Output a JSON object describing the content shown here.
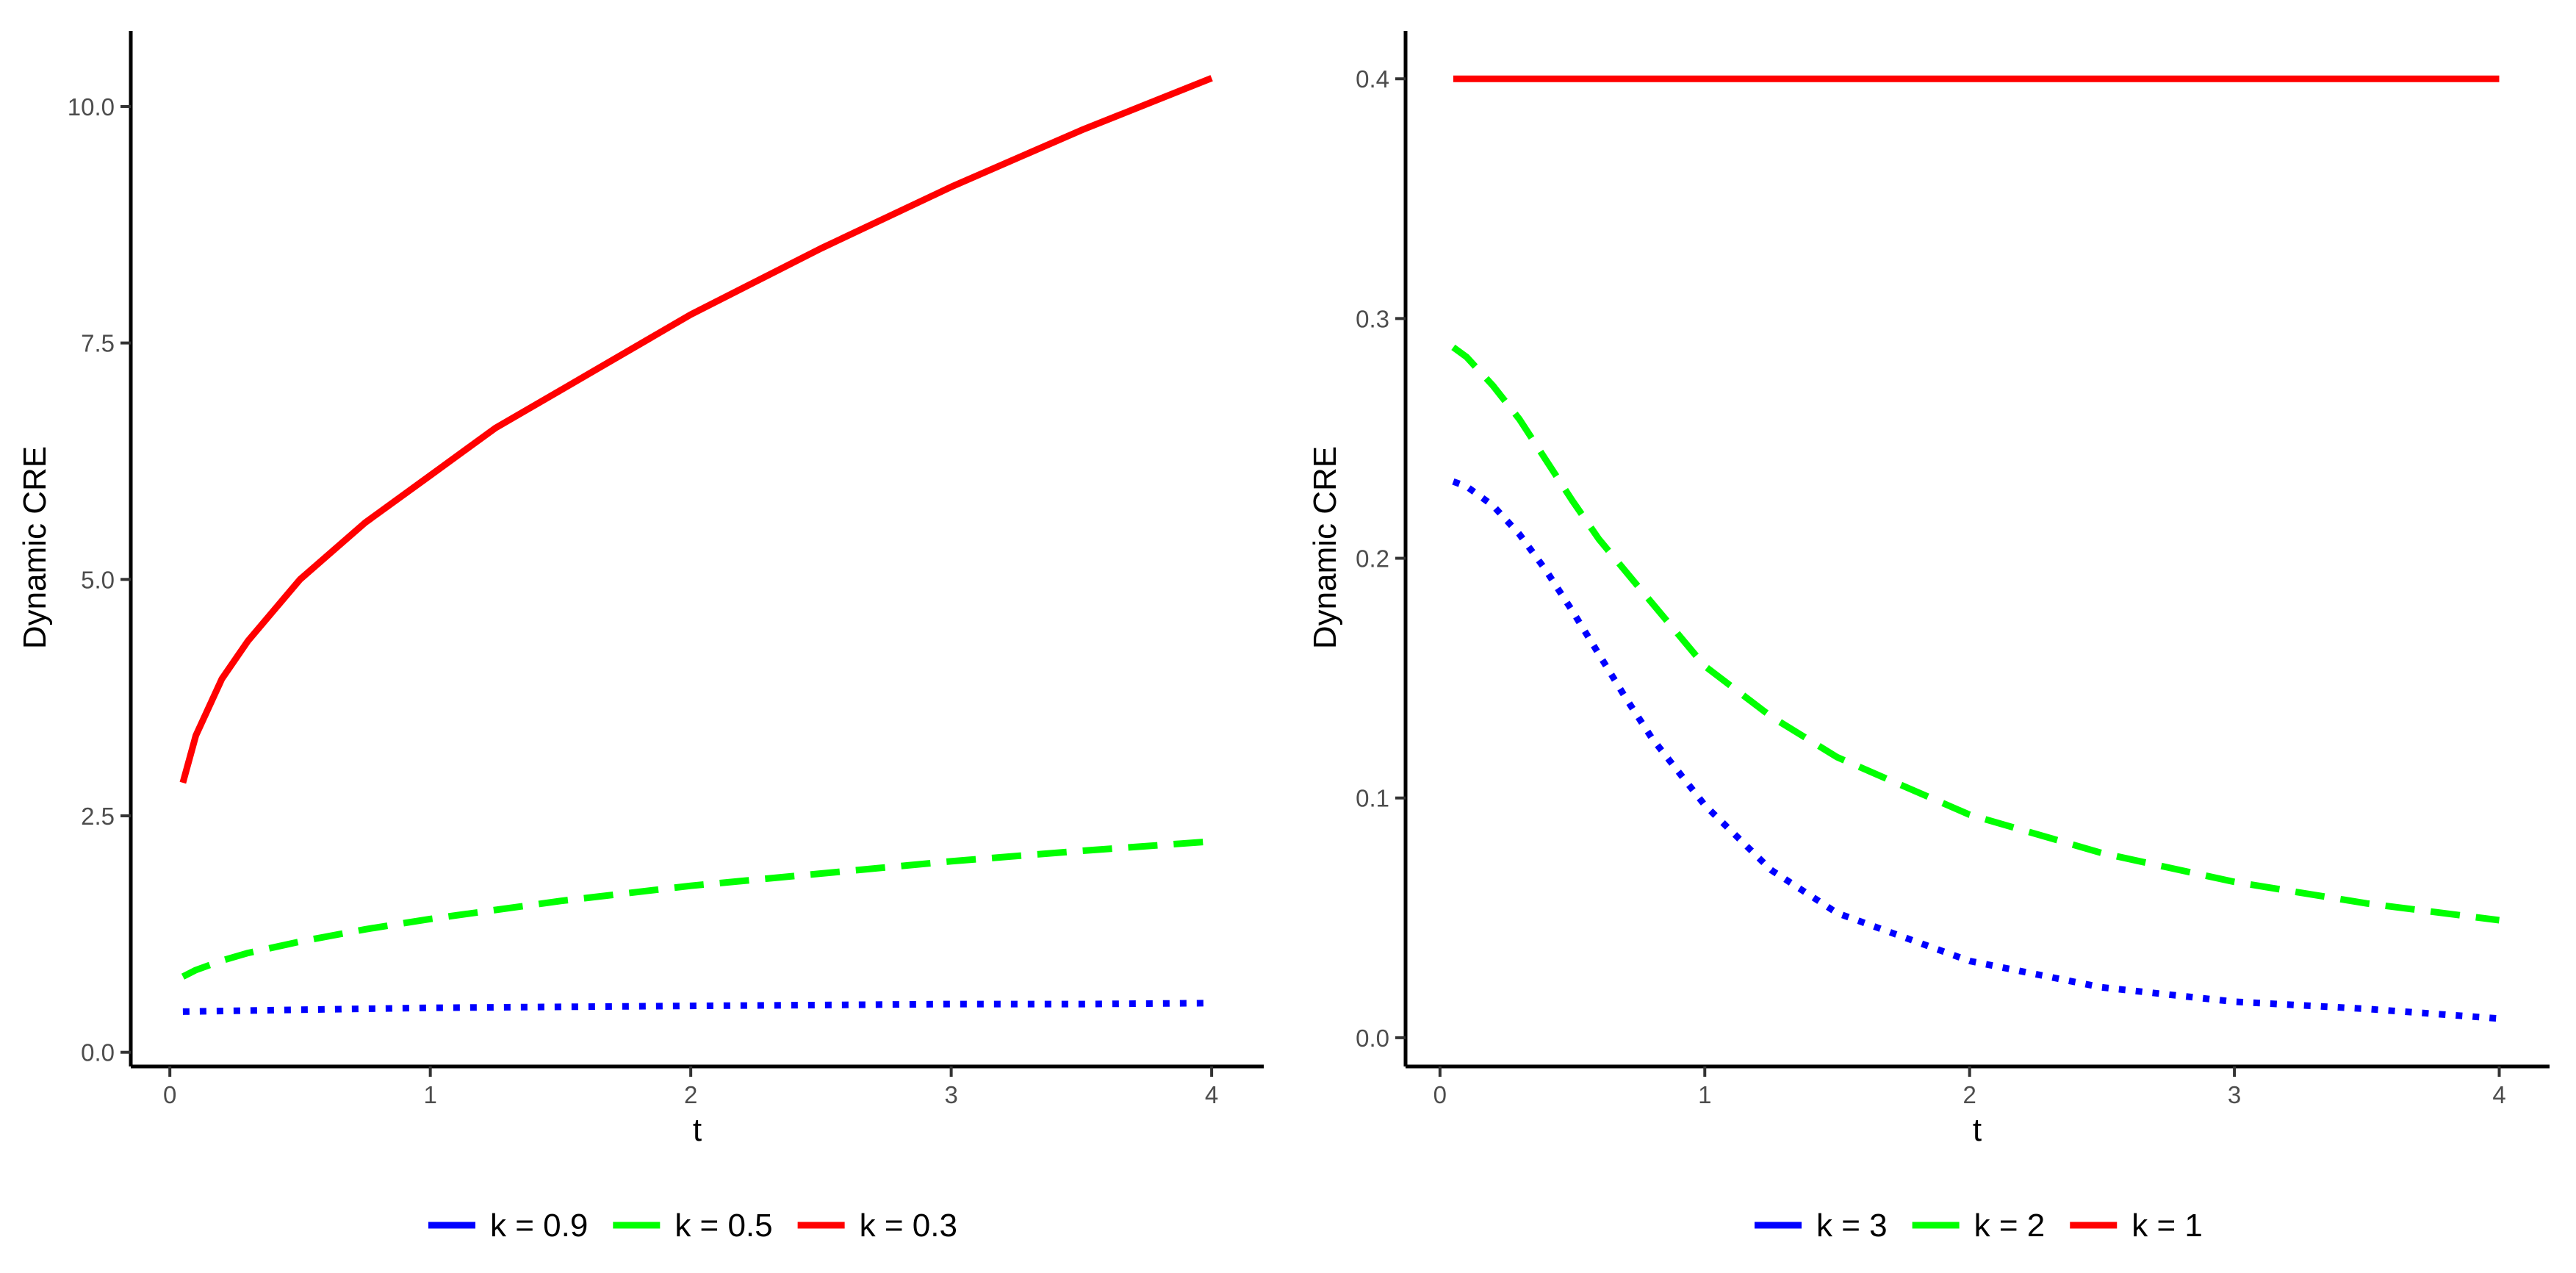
{
  "chart_data": [
    {
      "type": "line",
      "xlabel": "t",
      "ylabel": "Dynamic CRE",
      "xlim": [
        -0.15,
        4.2
      ],
      "ylim": [
        -0.15,
        10.8
      ],
      "x_ticks": [
        0,
        1,
        2,
        3,
        4
      ],
      "x_tick_labels": [
        "0",
        "1",
        "2",
        "3",
        "4"
      ],
      "y_ticks": [
        0,
        2.5,
        5,
        7.5,
        10
      ],
      "y_tick_labels": [
        "0.0",
        "2.5",
        "5.0",
        "7.5",
        "10.0"
      ],
      "grid": false,
      "legend_position": "bottom",
      "series": [
        {
          "name": "k = 0.9",
          "color": "#0000FF",
          "dash": "dotted",
          "x": [
            0.05,
            0.5,
            1,
            1.5,
            2,
            2.5,
            3,
            3.5,
            4
          ],
          "y": [
            0.43,
            0.45,
            0.47,
            0.48,
            0.49,
            0.5,
            0.51,
            0.51,
            0.52
          ]
        },
        {
          "name": "k = 0.5",
          "color": "#00FF00",
          "dash": "dashed",
          "x": [
            0.05,
            0.1,
            0.2,
            0.3,
            0.5,
            0.75,
            1,
            1.5,
            2,
            2.5,
            3,
            3.5,
            4
          ],
          "y": [
            0.8,
            0.87,
            0.97,
            1.05,
            1.17,
            1.3,
            1.41,
            1.6,
            1.76,
            1.89,
            2.02,
            2.13,
            2.23
          ]
        },
        {
          "name": "k = 0.3",
          "color": "#FF0000",
          "dash": "solid",
          "x": [
            0.05,
            0.1,
            0.2,
            0.3,
            0.5,
            0.75,
            1,
            1.25,
            1.5,
            2,
            2.5,
            3,
            3.5,
            4
          ],
          "y": [
            2.85,
            3.35,
            3.95,
            4.35,
            5.0,
            5.6,
            6.1,
            6.6,
            7.0,
            7.8,
            8.5,
            9.15,
            9.75,
            10.3
          ]
        }
      ]
    },
    {
      "type": "line",
      "xlabel": "t",
      "ylabel": "Dynamic CRE",
      "xlim": [
        -0.13,
        4.19
      ],
      "ylim": [
        -0.012,
        0.42
      ],
      "x_ticks": [
        0,
        1,
        2,
        3,
        4
      ],
      "x_tick_labels": [
        "0",
        "1",
        "2",
        "3",
        "4"
      ],
      "y_ticks": [
        0,
        0.1,
        0.2,
        0.3,
        0.4
      ],
      "y_tick_labels": [
        "0.0",
        "0.1",
        "0.2",
        "0.3",
        "0.4"
      ],
      "grid": false,
      "legend_position": "bottom",
      "series": [
        {
          "name": "k = 3",
          "color": "#0000FF",
          "dash": "dotted",
          "x": [
            0.05,
            0.1,
            0.2,
            0.3,
            0.4,
            0.5,
            0.6,
            0.7,
            0.8,
            1,
            1.25,
            1.5,
            2,
            2.5,
            3,
            3.5,
            4
          ],
          "y": [
            0.232,
            0.23,
            0.222,
            0.21,
            0.195,
            0.178,
            0.16,
            0.142,
            0.125,
            0.097,
            0.07,
            0.052,
            0.032,
            0.021,
            0.015,
            0.012,
            0.008
          ]
        },
        {
          "name": "k = 2",
          "color": "#00FF00",
          "dash": "dashed",
          "x": [
            0.05,
            0.1,
            0.2,
            0.3,
            0.4,
            0.5,
            0.6,
            0.75,
            1,
            1.25,
            1.5,
            2,
            2.5,
            3,
            3.5,
            4
          ],
          "y": [
            0.288,
            0.284,
            0.272,
            0.258,
            0.241,
            0.224,
            0.208,
            0.188,
            0.155,
            0.134,
            0.117,
            0.093,
            0.077,
            0.065,
            0.056,
            0.049
          ]
        },
        {
          "name": "k = 1",
          "color": "#FF0000",
          "dash": "solid",
          "x": [
            0.05,
            4
          ],
          "y": [
            0.4,
            0.4
          ]
        }
      ]
    }
  ]
}
